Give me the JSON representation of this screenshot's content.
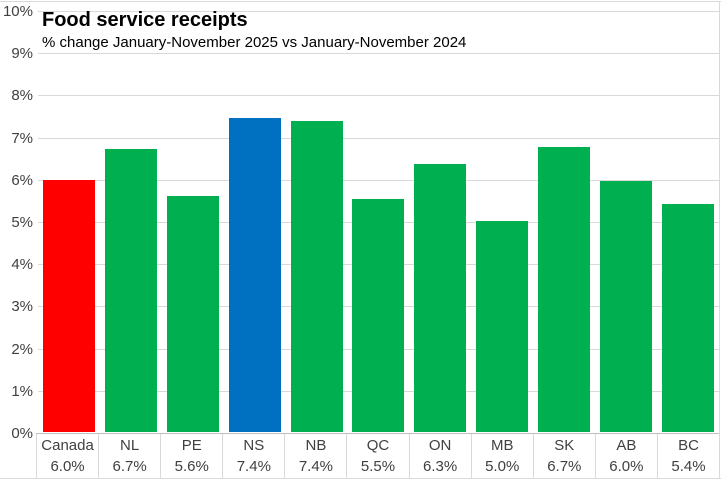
{
  "header": {
    "title": "Food service receipts",
    "subtitle": "% change January-November 2025 vs January-November 2024"
  },
  "chart_data": {
    "type": "bar",
    "title": "Food service receipts",
    "subtitle": "% change January-November 2025 vs January-November 2024",
    "categories": [
      "Canada",
      "NL",
      "PE",
      "NS",
      "NB",
      "QC",
      "ON",
      "MB",
      "SK",
      "AB",
      "BC"
    ],
    "value_labels": [
      "6.0%",
      "6.7%",
      "5.6%",
      "7.4%",
      "7.4%",
      "5.5%",
      "6.3%",
      "5.0%",
      "6.7%",
      "6.0%",
      "5.4%"
    ],
    "values": [
      5.97,
      6.7,
      5.6,
      7.44,
      7.37,
      5.52,
      6.35,
      5.0,
      6.75,
      5.95,
      5.4
    ],
    "unit": "%",
    "ylim": [
      0,
      10
    ],
    "ytick_step": 1,
    "ytick_labels": [
      "0%",
      "1%",
      "2%",
      "3%",
      "4%",
      "5%",
      "6%",
      "7%",
      "8%",
      "9%",
      "10%"
    ],
    "grid": true,
    "legend": "none",
    "colors": {
      "default_bar": "#00B050",
      "canada_bar": "#FF0000",
      "ns_bar": "#0070C0",
      "gridline": "#D9D9D9",
      "axis_line": "#BFBFBF",
      "label_text": "#404040",
      "title_text": "#000000"
    }
  }
}
